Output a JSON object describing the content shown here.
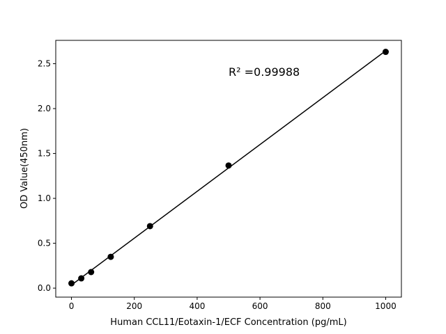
{
  "chart_data": {
    "type": "scatter",
    "xlabel": "Human CCL11/Eotaxin-1/ECF Concentration (pg/mL)",
    "ylabel": "OD Value(450nm)",
    "annotation": "R² =0.99988",
    "xlim": [
      -50,
      1050
    ],
    "ylim": [
      -0.1,
      2.76
    ],
    "xticks": [
      0,
      200,
      400,
      600,
      800,
      1000
    ],
    "yticks": [
      0.0,
      0.5,
      1.0,
      1.5,
      2.0,
      2.5
    ],
    "grid": false,
    "fit": "linear",
    "x": [
      0,
      31.25,
      62.5,
      125,
      250,
      500,
      1000
    ],
    "y": [
      0.054,
      0.109,
      0.179,
      0.349,
      0.691,
      1.366,
      2.632
    ],
    "color": "#000000"
  }
}
